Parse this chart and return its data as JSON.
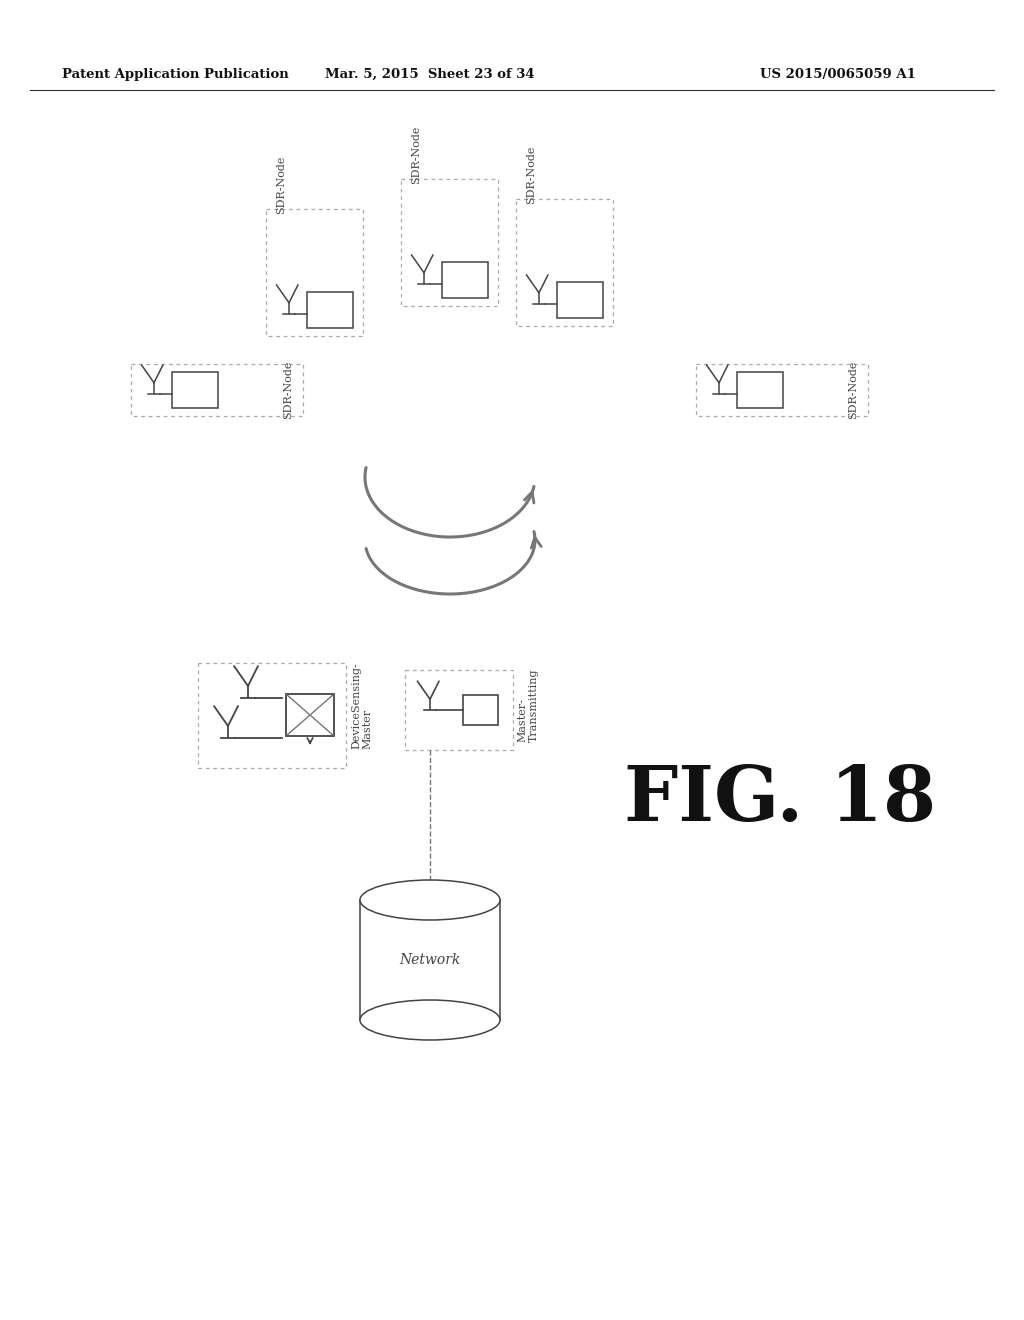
{
  "bg_color": "#ffffff",
  "text_color": "#111111",
  "header_left": "Patent Application Publication",
  "header_mid": "Mar. 5, 2015  Sheet 23 of 34",
  "header_right": "US 2015/0065059 A1",
  "fig_label": "FIG. 18",
  "line_color": "#444444",
  "dash_color": "#aaaaaa"
}
